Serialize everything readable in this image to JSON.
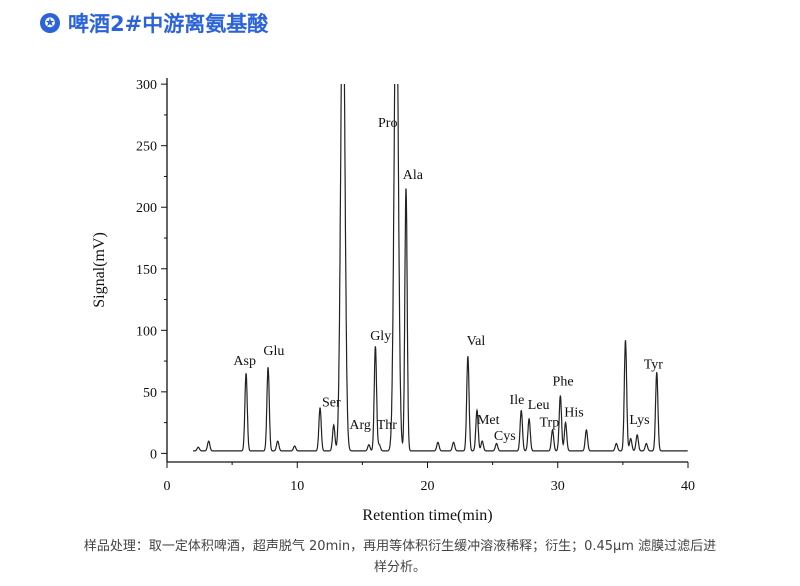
{
  "header": {
    "title": "啤酒2#中游离氨基酸",
    "icon": "star-circle-icon",
    "color": "#2b63d9"
  },
  "caption": "样品处理：取一定体积啤酒，超声脱气 20min，再用等体积衍生缓冲溶液稀释；衍生；0.45μm 滤膜过滤后进样分析。",
  "chart_data": {
    "type": "line",
    "title": "",
    "xlabel": "Retention time(min)",
    "ylabel": "Signal(mV)",
    "xlim": [
      0,
      40
    ],
    "ylim": [
      -7,
      305
    ],
    "xticks": [
      "0",
      "10",
      "20",
      "30",
      "40"
    ],
    "yticks": [
      "0",
      "50",
      "100",
      "150",
      "200",
      "250",
      "300"
    ],
    "grid": false,
    "baseline": 2,
    "peaks": [
      {
        "x": 2.4,
        "y": 3
      },
      {
        "x": 3.2,
        "y": 8
      },
      {
        "x": 6.07,
        "y": 63
      },
      {
        "x": 7.76,
        "y": 68
      },
      {
        "x": 8.5,
        "y": 8
      },
      {
        "x": 9.8,
        "y": 4
      },
      {
        "x": 11.75,
        "y": 35
      },
      {
        "x": 12.8,
        "y": 21
      },
      {
        "x": 13.5,
        "y": 400
      },
      {
        "x": 15.5,
        "y": 5
      },
      {
        "x": 16.0,
        "y": 85
      },
      {
        "x": 16.3,
        "y": 5
      },
      {
        "x": 17.6,
        "y": 400
      },
      {
        "x": 18.35,
        "y": 214
      },
      {
        "x": 20.8,
        "y": 7
      },
      {
        "x": 22.0,
        "y": 7
      },
      {
        "x": 23.1,
        "y": 77
      },
      {
        "x": 23.8,
        "y": 33
      },
      {
        "x": 24.2,
        "y": 8
      },
      {
        "x": 25.3,
        "y": 6
      },
      {
        "x": 27.2,
        "y": 33
      },
      {
        "x": 27.8,
        "y": 26
      },
      {
        "x": 29.6,
        "y": 17
      },
      {
        "x": 30.2,
        "y": 45
      },
      {
        "x": 30.6,
        "y": 23
      },
      {
        "x": 32.2,
        "y": 17
      },
      {
        "x": 34.5,
        "y": 6
      },
      {
        "x": 35.2,
        "y": 90
      },
      {
        "x": 35.6,
        "y": 10
      },
      {
        "x": 36.1,
        "y": 13
      },
      {
        "x": 36.8,
        "y": 6
      },
      {
        "x": 37.6,
        "y": 64
      }
    ],
    "annotations": [
      {
        "text": "Asp",
        "x": 5.1,
        "y": 72
      },
      {
        "text": "Glu",
        "x": 7.4,
        "y": 80
      },
      {
        "text": "Ser",
        "x": 11.9,
        "y": 38
      },
      {
        "text": "Arg",
        "x": 14.0,
        "y": 20
      },
      {
        "text": "Thr",
        "x": 16.1,
        "y": 20
      },
      {
        "text": "Gly",
        "x": 15.6,
        "y": 92
      },
      {
        "text": "Pro",
        "x": 16.2,
        "y": 265
      },
      {
        "text": "Ala",
        "x": 18.1,
        "y": 223
      },
      {
        "text": "Val",
        "x": 23.0,
        "y": 88
      },
      {
        "text": "Met",
        "x": 23.8,
        "y": 24
      },
      {
        "text": "Cys",
        "x": 25.1,
        "y": 11
      },
      {
        "text": "Ile",
        "x": 26.3,
        "y": 40
      },
      {
        "text": "Leu",
        "x": 27.7,
        "y": 36
      },
      {
        "text": "Trp",
        "x": 28.6,
        "y": 22
      },
      {
        "text": "Phe",
        "x": 29.6,
        "y": 55
      },
      {
        "text": "His",
        "x": 30.5,
        "y": 30
      },
      {
        "text": "Lys",
        "x": 35.5,
        "y": 24
      },
      {
        "text": "Tyr",
        "x": 36.6,
        "y": 69
      }
    ]
  }
}
